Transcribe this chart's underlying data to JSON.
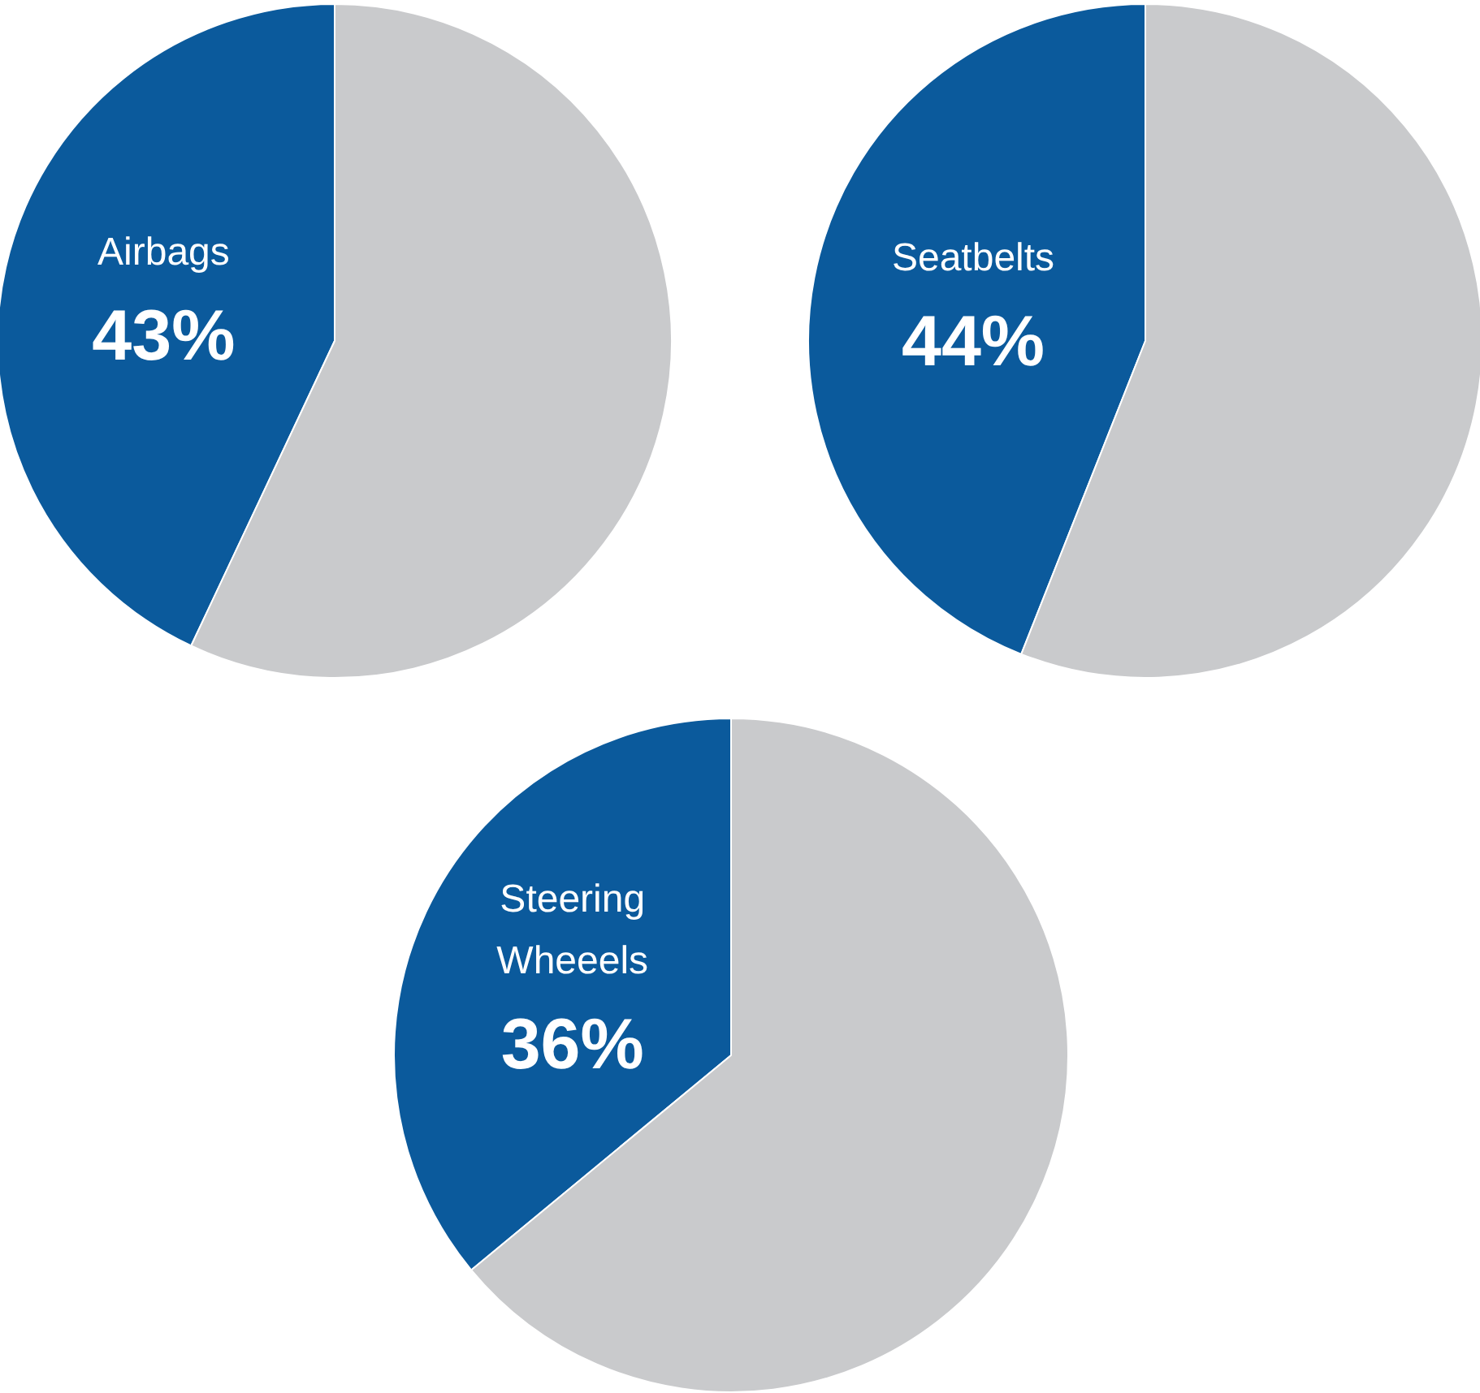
{
  "chart_data": [
    {
      "type": "pie",
      "categories": [
        "Airbags",
        null
      ],
      "values": [
        43,
        57
      ],
      "colors": [
        "#0b5a9c",
        "#c9cacc"
      ],
      "value_labels": [
        "43%",
        null
      ]
    },
    {
      "type": "pie",
      "categories": [
        "Seatbelts",
        null
      ],
      "values": [
        44,
        56
      ],
      "colors": [
        "#0b5a9c",
        "#c9cacc"
      ],
      "value_labels": [
        "44%",
        null
      ]
    },
    {
      "type": "pie",
      "categories": [
        "Steering Wheeels",
        null
      ],
      "values": [
        36,
        64
      ],
      "colors": [
        "#0b5a9c",
        "#c9cacc"
      ],
      "value_labels": [
        "36%",
        null
      ]
    }
  ]
}
